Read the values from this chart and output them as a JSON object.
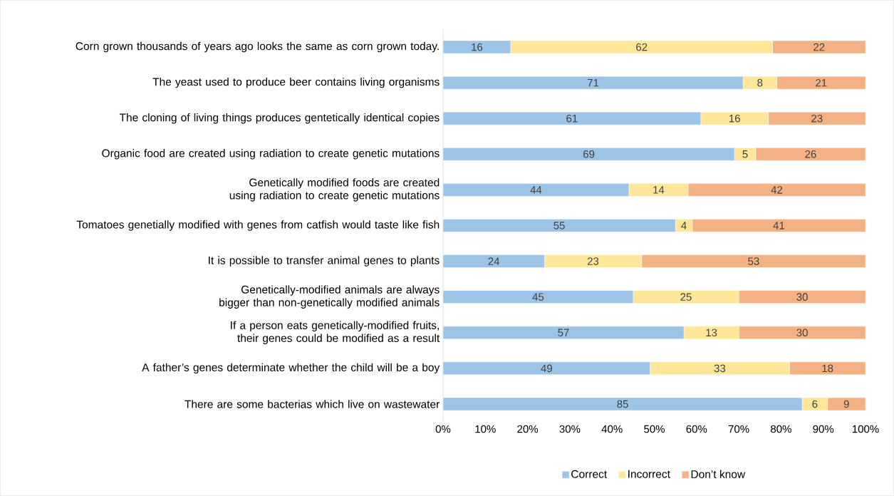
{
  "chart_data": {
    "type": "bar",
    "orientation": "horizontal",
    "stacked": true,
    "data_labels": true,
    "legend": "bottom",
    "categories": [
      "Corn grown thousands of years ago looks the same as corn grown today.",
      "The yeast used to produce beer contains living organisms",
      "The cloning of living things produces gentetically identical copies",
      "Organic food are created using radiation to create genetic mutations",
      "Genetically modified foods are created using radiation to create genetic mutations",
      "Tomatoes genetially modified with genes from catfish would taste like fish",
      "It is possible to transfer animal genes to plants",
      "Genetically-modified animals are always bigger than non-genetically modified animals",
      "If a person eats genetically-modified fruits, their genes could be modified as a result",
      "A father’s genes determinate whether the child will be a boy",
      "There are some bacterias which live on wastewater"
    ],
    "series": [
      {
        "name": "Correct",
        "color": "#9dc3e6",
        "values": [
          16,
          71,
          61,
          69,
          44,
          55,
          24,
          45,
          57,
          49,
          85
        ]
      },
      {
        "name": "Incorrect",
        "color": "#ffe699",
        "values": [
          62,
          8,
          16,
          5,
          14,
          4,
          23,
          25,
          13,
          33,
          6
        ]
      },
      {
        "name": "Don’t know",
        "color": "#f4b183",
        "values": [
          22,
          21,
          23,
          26,
          42,
          41,
          53,
          30,
          30,
          18,
          9
        ]
      }
    ],
    "xlim": [
      0,
      100
    ],
    "xticks": [
      {
        "value": 0,
        "label": "0%"
      },
      {
        "value": 10,
        "label": "10%"
      },
      {
        "value": 20,
        "label": "20%"
      },
      {
        "value": 30,
        "label": "30%"
      },
      {
        "value": 40,
        "label": "40%"
      },
      {
        "value": 50,
        "label": "50%"
      },
      {
        "value": 60,
        "label": "60%"
      },
      {
        "value": 70,
        "label": "70%"
      },
      {
        "value": 80,
        "label": "80%"
      },
      {
        "value": 90,
        "label": "90%"
      },
      {
        "value": 100,
        "label": "100%"
      }
    ]
  }
}
